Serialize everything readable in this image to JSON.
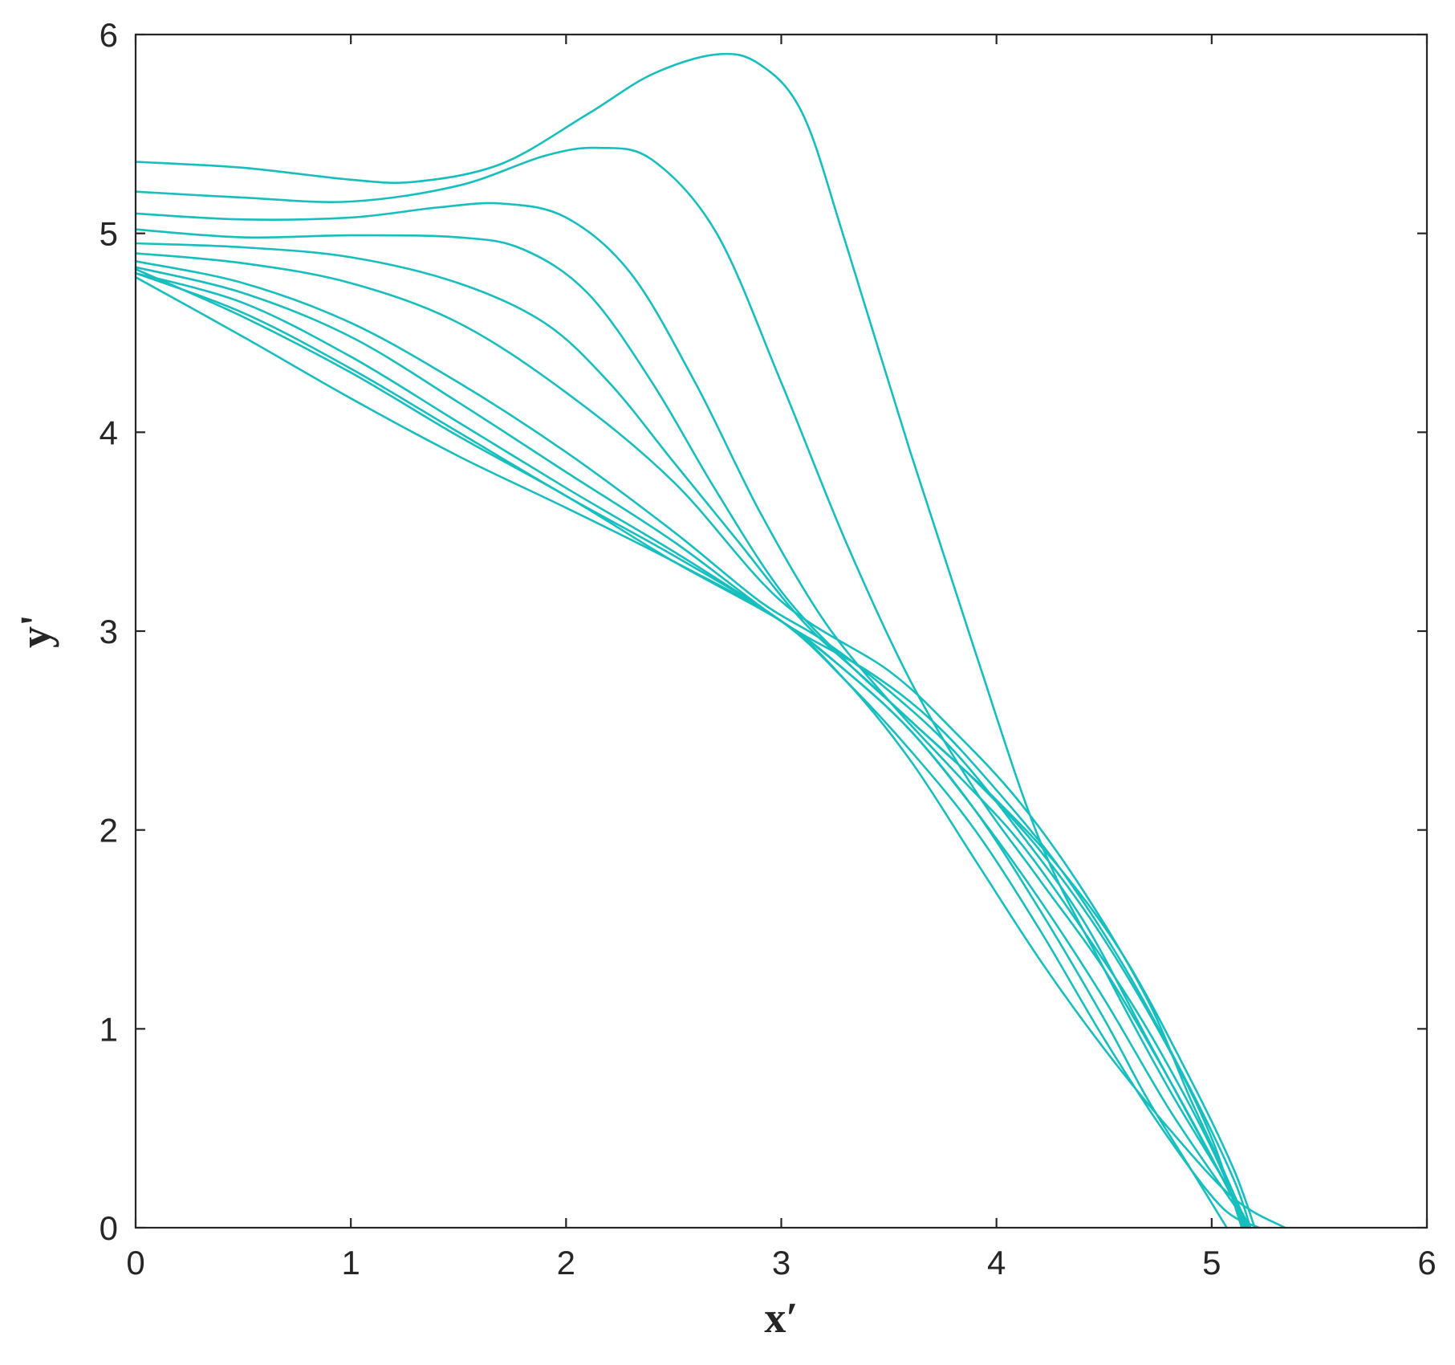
{
  "chart_data": {
    "type": "line",
    "title": "",
    "xlabel": "x′",
    "ylabel": "y'",
    "xlim": [
      0,
      6
    ],
    "ylim": [
      0,
      6
    ],
    "xticks": [
      "0",
      "1",
      "2",
      "3",
      "4",
      "5",
      "6"
    ],
    "yticks": [
      "0",
      "1",
      "2",
      "3",
      "4",
      "5",
      "6"
    ],
    "grid": false,
    "legend": "none",
    "line_color": "#17BEBE",
    "series": [
      {
        "x": [
          0,
          0.5,
          1.0,
          1.3,
          1.7,
          2.1,
          2.4,
          2.7,
          2.9,
          3.1,
          3.3,
          3.6,
          3.9,
          4.2,
          4.5,
          4.8,
          5.05,
          5.18
        ],
        "y": [
          5.36,
          5.33,
          5.27,
          5.26,
          5.35,
          5.6,
          5.8,
          5.9,
          5.85,
          5.6,
          4.95,
          3.9,
          2.9,
          1.95,
          1.3,
          0.7,
          0.25,
          0.0
        ]
      },
      {
        "x": [
          0,
          0.5,
          1.0,
          1.5,
          1.9,
          2.15,
          2.4,
          2.7,
          3.0,
          3.3,
          3.6,
          3.9,
          4.2,
          4.5,
          4.8,
          5.05,
          5.16
        ],
        "y": [
          5.21,
          5.18,
          5.16,
          5.24,
          5.39,
          5.43,
          5.37,
          5.0,
          4.25,
          3.45,
          2.75,
          2.2,
          1.75,
          1.3,
          0.75,
          0.25,
          0.0
        ]
      },
      {
        "x": [
          0,
          0.5,
          1.0,
          1.4,
          1.7,
          2.0,
          2.3,
          2.6,
          2.9,
          3.2,
          3.5,
          3.8,
          4.1,
          4.4,
          4.7,
          5.0,
          5.15
        ],
        "y": [
          5.1,
          5.07,
          5.08,
          5.13,
          5.15,
          5.08,
          4.8,
          4.25,
          3.6,
          3.05,
          2.65,
          2.3,
          1.95,
          1.5,
          1.0,
          0.4,
          0.0
        ]
      },
      {
        "x": [
          0,
          0.5,
          1.0,
          1.5,
          1.8,
          2.1,
          2.4,
          2.7,
          3.0,
          3.3,
          3.6,
          3.9,
          4.2,
          4.5,
          4.8,
          5.0,
          5.14
        ],
        "y": [
          5.02,
          4.98,
          4.99,
          4.98,
          4.92,
          4.7,
          4.25,
          3.7,
          3.2,
          2.85,
          2.55,
          2.25,
          1.9,
          1.45,
          0.9,
          0.45,
          0.0
        ]
      },
      {
        "x": [
          0,
          0.5,
          1.0,
          1.5,
          1.9,
          2.2,
          2.5,
          2.8,
          3.1,
          3.4,
          3.7,
          4.0,
          4.3,
          4.6,
          4.9,
          5.1,
          5.2
        ],
        "y": [
          4.95,
          4.93,
          4.88,
          4.75,
          4.55,
          4.25,
          3.85,
          3.45,
          3.05,
          2.75,
          2.45,
          2.15,
          1.8,
          1.35,
          0.75,
          0.3,
          0.0
        ]
      },
      {
        "x": [
          0,
          0.5,
          1.0,
          1.5,
          2.0,
          2.5,
          3.0,
          3.5,
          3.8,
          4.1,
          4.4,
          4.7,
          4.9,
          5.05,
          5.17
        ],
        "y": [
          4.9,
          4.85,
          4.75,
          4.55,
          4.2,
          3.75,
          3.15,
          2.8,
          2.5,
          2.15,
          1.7,
          1.15,
          0.65,
          0.3,
          0.0
        ]
      },
      {
        "x": [
          0,
          0.5,
          1.0,
          1.5,
          2.0,
          2.5,
          2.9,
          3.2,
          3.5,
          3.8,
          4.1,
          4.4,
          4.7,
          5.0,
          5.17
        ],
        "y": [
          4.86,
          4.75,
          4.55,
          4.25,
          3.9,
          3.5,
          3.15,
          2.95,
          2.7,
          2.4,
          2.0,
          1.55,
          0.95,
          0.35,
          0.0
        ]
      },
      {
        "x": [
          0,
          0.5,
          1.0,
          1.5,
          2.0,
          2.5,
          3.0,
          3.4,
          3.7,
          4.0,
          4.3,
          4.6,
          4.9,
          5.1,
          5.18
        ],
        "y": [
          4.83,
          4.7,
          4.48,
          4.15,
          3.8,
          3.45,
          3.05,
          2.8,
          2.55,
          2.2,
          1.8,
          1.3,
          0.7,
          0.25,
          0.0
        ]
      },
      {
        "x": [
          0,
          0.5,
          1.0,
          1.5,
          2.0,
          2.5,
          3.0,
          3.3,
          3.6,
          3.9,
          4.2,
          4.5,
          4.8,
          5.05,
          5.18
        ],
        "y": [
          4.8,
          4.65,
          4.38,
          4.05,
          3.72,
          3.4,
          3.05,
          2.8,
          2.5,
          2.1,
          1.65,
          1.15,
          0.6,
          0.2,
          0.0
        ]
      },
      {
        "x": [
          0,
          0.5,
          1.0,
          1.5,
          2.0,
          2.5,
          3.0,
          3.3,
          3.6,
          3.9,
          4.2,
          4.5,
          4.8,
          5.05,
          5.22
        ],
        "y": [
          4.8,
          4.6,
          4.32,
          4.0,
          3.68,
          3.38,
          3.05,
          2.75,
          2.4,
          2.0,
          1.5,
          0.95,
          0.45,
          0.1,
          0.0
        ]
      },
      {
        "x": [
          0,
          0.5,
          1.0,
          1.5,
          2.0,
          2.5,
          3.0,
          3.3,
          3.6,
          3.9,
          4.2,
          4.5,
          4.8,
          5.1,
          5.34
        ],
        "y": [
          4.78,
          4.48,
          4.17,
          3.88,
          3.62,
          3.35,
          3.05,
          2.75,
          2.35,
          1.85,
          1.35,
          0.9,
          0.5,
          0.15,
          0.0
        ]
      },
      {
        "x": [
          0,
          0.5,
          1.0,
          1.5,
          2.0,
          2.5,
          3.0,
          3.3,
          3.6,
          3.9,
          4.2,
          4.5,
          4.7,
          4.9,
          5.07
        ],
        "y": [
          4.82,
          4.58,
          4.3,
          3.98,
          3.68,
          3.35,
          3.05,
          2.8,
          2.5,
          2.1,
          1.6,
          1.05,
          0.65,
          0.3,
          0.0
        ]
      }
    ]
  }
}
